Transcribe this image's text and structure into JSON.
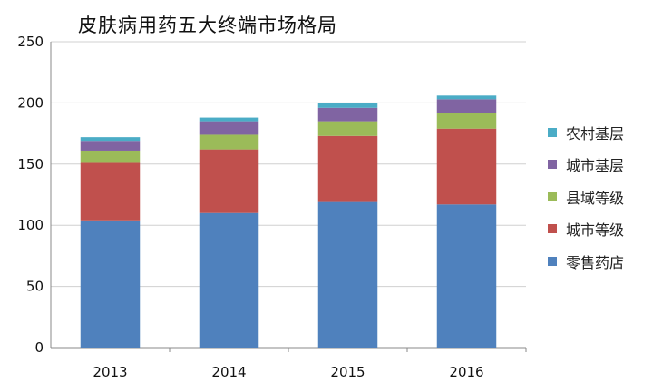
{
  "chart_data": {
    "type": "bar",
    "stacked": true,
    "title": "皮肤病用药五大终端市场格局",
    "categories": [
      "2013",
      "2014",
      "2015",
      "2016"
    ],
    "series": [
      {
        "name": "零售药店",
        "color": "#4F81BD",
        "values": [
          104,
          110,
          119,
          117
        ]
      },
      {
        "name": "城市等级",
        "color": "#C0504D",
        "values": [
          47,
          52,
          54,
          62
        ]
      },
      {
        "name": "县域等级",
        "color": "#9BBB59",
        "values": [
          10,
          12,
          12,
          13
        ]
      },
      {
        "name": "城市基层",
        "color": "#8064A2",
        "values": [
          8,
          11,
          11,
          11
        ]
      },
      {
        "name": "农村基层",
        "color": "#4BACC6",
        "values": [
          3,
          3,
          4,
          3
        ]
      }
    ],
    "legend_order": [
      "农村基层",
      "城市基层",
      "县域等级",
      "城市等级",
      "零售药店"
    ],
    "ylim": [
      0,
      250
    ],
    "yticks": [
      0,
      50,
      100,
      150,
      200,
      250
    ],
    "grid": "horizontal",
    "legend_position": "right"
  }
}
